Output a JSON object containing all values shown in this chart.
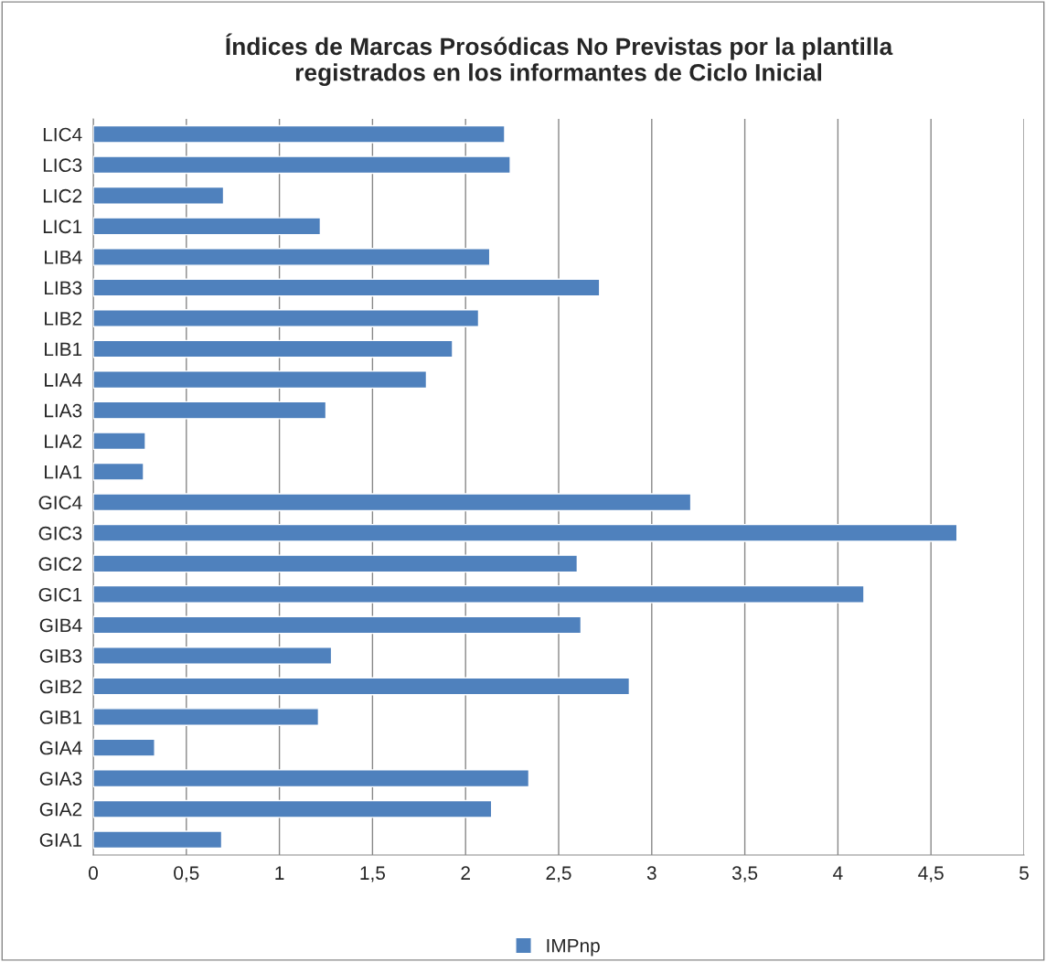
{
  "chart_data": {
    "type": "bar",
    "orientation": "horizontal",
    "title": "Índices de Marcas Prosódicas No Previstas por la plantilla\nregistrados en los informantes de Ciclo Inicial",
    "categories": [
      "LIC4",
      "LIC3",
      "LIC2",
      "LIC1",
      "LIB4",
      "LIB3",
      "LIB2",
      "LIB1",
      "LIA4",
      "LIA3",
      "LIA2",
      "LIA1",
      "GIC4",
      "GIC3",
      "GIC2",
      "GIC1",
      "GIB4",
      "GIB3",
      "GIB2",
      "GIB1",
      "GIA4",
      "GIA3",
      "GIA2",
      "GIA1"
    ],
    "series": [
      {
        "name": "IMPnp",
        "color": "#4f81bd",
        "values": [
          2.21,
          2.24,
          0.7,
          1.22,
          2.13,
          2.72,
          2.07,
          1.93,
          1.79,
          1.25,
          0.28,
          0.27,
          3.21,
          4.64,
          2.6,
          4.14,
          2.62,
          1.28,
          2.88,
          1.21,
          0.33,
          2.34,
          2.14,
          0.69
        ]
      }
    ],
    "xlim": [
      0,
      5
    ],
    "xticks": [
      0,
      {
        "value": 0.5,
        "label": "0,5"
      },
      1,
      {
        "value": 1.5,
        "label": "1,5"
      },
      2,
      {
        "value": 2.5,
        "label": "2,5"
      },
      3,
      {
        "value": 3.5,
        "label": "3,5"
      },
      4,
      {
        "value": 4.5,
        "label": "4,5"
      },
      5
    ],
    "grid": "x",
    "legend": "bottom"
  }
}
